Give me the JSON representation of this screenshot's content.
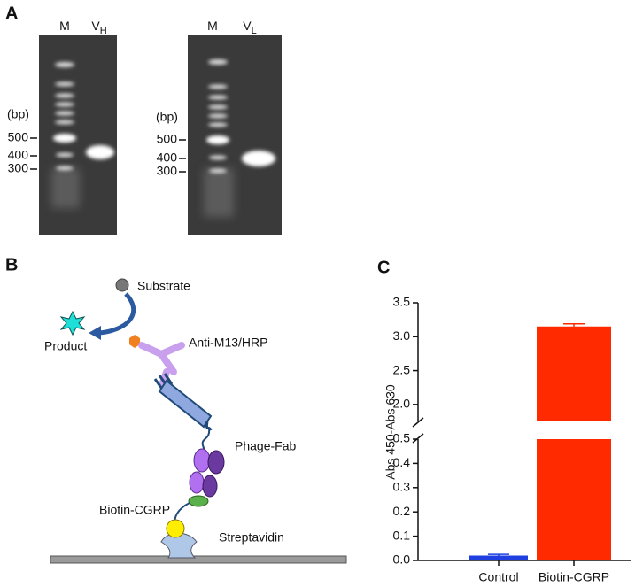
{
  "panel_labels": [
    "A",
    "B",
    "C"
  ],
  "gels": [
    {
      "lanes": [
        {
          "text": "M"
        },
        {
          "text": "V",
          "sub": "H"
        }
      ],
      "markers": [
        "(bp)",
        "500",
        "400",
        "300"
      ]
    },
    {
      "lanes": [
        {
          "text": "M"
        },
        {
          "text": "V",
          "sub": "L"
        }
      ],
      "markers": [
        "(bp)",
        "500",
        "400",
        "300"
      ]
    }
  ],
  "diagram": {
    "substrate": "Substrate",
    "product": "Product",
    "antibody": "Anti-M13/HRP",
    "phage": "Phage-Fab",
    "biotin": "Biotin-CGRP",
    "streptavidin": "Streptavidin"
  },
  "chart_data": {
    "type": "bar",
    "ylabel": "Abs 450-Abs 630",
    "categories": [
      "Control",
      "Biotin-CGRP"
    ],
    "values": [
      0.02,
      3.15
    ],
    "errors": [
      0.005,
      0.04
    ],
    "colors": [
      "#1f3fe0",
      "#ff2a00"
    ],
    "ylim": [
      0,
      3.5
    ],
    "ybreak": [
      0.5,
      1.75
    ],
    "yticks": [
      {
        "value": 0,
        "label": "0.0"
      },
      0.1,
      0.2,
      0.3,
      0.4,
      0.5,
      {
        "value": 2,
        "label": "2.0"
      },
      2.5,
      {
        "value": 3,
        "label": "3.0"
      },
      3.5
    ]
  }
}
